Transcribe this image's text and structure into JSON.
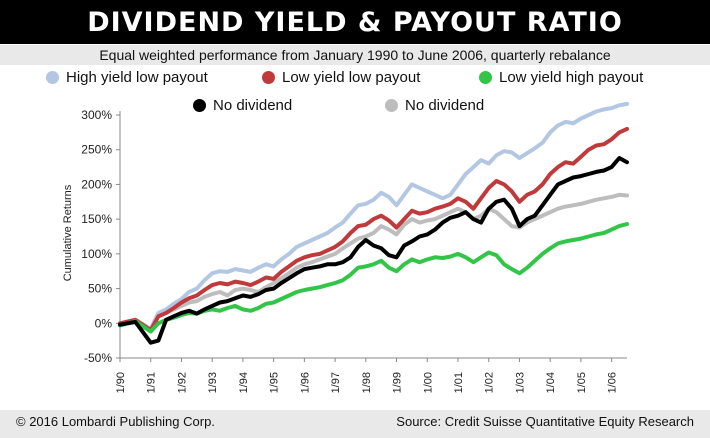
{
  "header": {
    "title": "DIVIDEND YIELD & PAYOUT RATIO",
    "subtitle": "Equal weighted performance from January 1990 to June 2006, quarterly rebalance"
  },
  "footer": {
    "copyright": "© 2016 Lombardi Publishing Corp.",
    "source": "Source: Credit Suisse Quantitative Equity Research"
  },
  "chart_data": {
    "type": "line",
    "ylabel": "Cumulative Returns",
    "xlabel": "",
    "ylim": [
      -50,
      300
    ],
    "yticks": [
      -50,
      0,
      50,
      100,
      150,
      200,
      250,
      300
    ],
    "ytick_labels": [
      "-50%",
      "0%",
      "50%",
      "100%",
      "150%",
      "200%",
      "250%",
      "300%"
    ],
    "x_tick_labels": [
      "1/90",
      "1/91",
      "1/92",
      "1/93",
      "1/94",
      "1/95",
      "1/96",
      "1/97",
      "1/98",
      "1/99",
      "1/00",
      "1/01",
      "1/02",
      "1/03",
      "1/04",
      "1/05",
      "1/06"
    ],
    "x_start_year": 1990,
    "x_end_year": 2006.5,
    "grid": false,
    "legend_position": "top",
    "series": [
      {
        "name": "High yield low payout",
        "color": "#b3c7e3",
        "x": [
          1990,
          1990.5,
          1991,
          1991.25,
          1991.5,
          1991.75,
          1992,
          1992.25,
          1992.5,
          1992.75,
          1993,
          1993.25,
          1993.5,
          1993.75,
          1994,
          1994.25,
          1994.5,
          1994.75,
          1995,
          1995.25,
          1995.5,
          1995.75,
          1996,
          1996.25,
          1996.5,
          1996.75,
          1997,
          1997.25,
          1997.5,
          1997.75,
          1998,
          1998.25,
          1998.5,
          1998.75,
          1999,
          1999.25,
          1999.5,
          1999.75,
          2000,
          2000.25,
          2000.5,
          2000.75,
          2001,
          2001.25,
          2001.5,
          2001.75,
          2002,
          2002.25,
          2002.5,
          2002.75,
          2003,
          2003.25,
          2003.5,
          2003.75,
          2004,
          2004.25,
          2004.5,
          2004.75,
          2005,
          2005.25,
          2005.5,
          2005.75,
          2006,
          2006.25,
          2006.5
        ],
        "y": [
          -3,
          5,
          -8,
          15,
          20,
          28,
          35,
          45,
          50,
          62,
          72,
          75,
          74,
          78,
          76,
          74,
          80,
          85,
          82,
          92,
          100,
          110,
          115,
          120,
          125,
          130,
          138,
          145,
          158,
          170,
          172,
          178,
          188,
          182,
          170,
          185,
          200,
          195,
          190,
          185,
          180,
          185,
          200,
          215,
          225,
          235,
          230,
          242,
          248,
          246,
          238,
          245,
          252,
          260,
          275,
          285,
          290,
          288,
          295,
          300,
          305,
          308,
          310,
          314,
          316
        ]
      },
      {
        "name": "Low yield low payout",
        "color": "#c0393b",
        "x": [
          1990,
          1990.5,
          1991,
          1991.25,
          1991.5,
          1991.75,
          1992,
          1992.25,
          1992.5,
          1992.75,
          1993,
          1993.25,
          1993.5,
          1993.75,
          1994,
          1994.25,
          1994.5,
          1994.75,
          1995,
          1995.25,
          1995.5,
          1995.75,
          1996,
          1996.25,
          1996.5,
          1996.75,
          1997,
          1997.25,
          1997.5,
          1997.75,
          1998,
          1998.25,
          1998.5,
          1998.75,
          1999,
          1999.25,
          1999.5,
          1999.75,
          2000,
          2000.25,
          2000.5,
          2000.75,
          2001,
          2001.25,
          2001.5,
          2001.75,
          2002,
          2002.25,
          2002.5,
          2002.75,
          2003,
          2003.25,
          2003.5,
          2003.75,
          2004,
          2004.25,
          2004.5,
          2004.75,
          2005,
          2005.25,
          2005.5,
          2005.75,
          2006,
          2006.25,
          2006.5
        ],
        "y": [
          0,
          5,
          -10,
          10,
          15,
          22,
          30,
          36,
          40,
          48,
          55,
          58,
          56,
          60,
          58,
          55,
          60,
          66,
          64,
          74,
          82,
          90,
          95,
          98,
          100,
          105,
          110,
          118,
          130,
          140,
          142,
          150,
          155,
          148,
          138,
          150,
          162,
          158,
          160,
          165,
          168,
          172,
          180,
          175,
          165,
          180,
          195,
          205,
          200,
          190,
          175,
          185,
          190,
          200,
          215,
          225,
          232,
          230,
          240,
          250,
          256,
          258,
          265,
          275,
          280
        ]
      },
      {
        "name": "Low yield high payout",
        "color": "#33c548",
        "x": [
          1990,
          1990.5,
          1991,
          1991.25,
          1991.5,
          1991.75,
          1992,
          1992.25,
          1992.5,
          1992.75,
          1993,
          1993.25,
          1993.5,
          1993.75,
          1994,
          1994.25,
          1994.5,
          1994.75,
          1995,
          1995.25,
          1995.5,
          1995.75,
          1996,
          1996.25,
          1996.5,
          1996.75,
          1997,
          1997.25,
          1997.5,
          1997.75,
          1998,
          1998.25,
          1998.5,
          1998.75,
          1999,
          1999.25,
          1999.5,
          1999.75,
          2000,
          2000.25,
          2000.5,
          2000.75,
          2001,
          2001.25,
          2001.5,
          2001.75,
          2002,
          2002.25,
          2002.5,
          2002.75,
          2003,
          2003.25,
          2003.5,
          2003.75,
          2004,
          2004.25,
          2004.5,
          2004.75,
          2005,
          2005.25,
          2005.5,
          2005.75,
          2006,
          2006.25,
          2006.5
        ],
        "y": [
          -3,
          3,
          -12,
          0,
          5,
          8,
          12,
          15,
          14,
          18,
          20,
          18,
          22,
          25,
          20,
          18,
          22,
          28,
          30,
          35,
          40,
          45,
          48,
          50,
          52,
          55,
          58,
          62,
          70,
          80,
          82,
          85,
          90,
          80,
          75,
          85,
          92,
          88,
          92,
          95,
          94,
          96,
          100,
          95,
          88,
          95,
          102,
          98,
          85,
          78,
          72,
          80,
          90,
          100,
          108,
          115,
          118,
          120,
          122,
          125,
          128,
          130,
          135,
          140,
          143
        ]
      },
      {
        "name": "No dividend",
        "color": "#000000",
        "x": [
          1990,
          1990.5,
          1991,
          1991.25,
          1991.5,
          1991.75,
          1992,
          1992.25,
          1992.5,
          1992.75,
          1993,
          1993.25,
          1993.5,
          1993.75,
          1994,
          1994.25,
          1994.5,
          1994.75,
          1995,
          1995.25,
          1995.5,
          1995.75,
          1996,
          1996.25,
          1996.5,
          1996.75,
          1997,
          1997.25,
          1997.5,
          1997.75,
          1998,
          1998.25,
          1998.5,
          1998.75,
          1999,
          1999.25,
          1999.5,
          1999.75,
          2000,
          2000.25,
          2000.5,
          2000.75,
          2001,
          2001.25,
          2001.5,
          2001.75,
          2002,
          2002.25,
          2002.5,
          2002.75,
          2003,
          2003.25,
          2003.5,
          2003.75,
          2004,
          2004.25,
          2004.5,
          2004.75,
          2005,
          2005.25,
          2005.5,
          2005.75,
          2006,
          2006.25,
          2006.5
        ],
        "y": [
          -2,
          2,
          -28,
          -25,
          5,
          10,
          15,
          18,
          14,
          20,
          25,
          30,
          32,
          36,
          40,
          38,
          42,
          48,
          50,
          58,
          65,
          72,
          78,
          80,
          82,
          85,
          85,
          88,
          95,
          110,
          120,
          112,
          108,
          98,
          95,
          112,
          118,
          125,
          128,
          135,
          145,
          152,
          155,
          160,
          150,
          145,
          165,
          175,
          178,
          165,
          140,
          150,
          155,
          170,
          185,
          200,
          205,
          210,
          212,
          215,
          218,
          220,
          225,
          238,
          232
        ]
      },
      {
        "name": "No dividend",
        "color": "#bdbdbd",
        "x": [
          1990,
          1990.5,
          1991,
          1991.25,
          1991.5,
          1991.75,
          1992,
          1992.25,
          1992.5,
          1992.75,
          1993,
          1993.25,
          1993.5,
          1993.75,
          1994,
          1994.25,
          1994.5,
          1994.75,
          1995,
          1995.25,
          1995.5,
          1995.75,
          1996,
          1996.25,
          1996.5,
          1996.75,
          1997,
          1997.25,
          1997.5,
          1997.75,
          1998,
          1998.25,
          1998.5,
          1998.75,
          1999,
          1999.25,
          1999.5,
          1999.75,
          2000,
          2000.25,
          2000.5,
          2000.75,
          2001,
          2001.25,
          2001.5,
          2001.75,
          2002,
          2002.25,
          2002.5,
          2002.75,
          2003,
          2003.25,
          2003.5,
          2003.75,
          2004,
          2004.25,
          2004.5,
          2004.75,
          2005,
          2005.25,
          2005.5,
          2005.75,
          2006,
          2006.25,
          2006.5
        ],
        "y": [
          -3,
          4,
          -10,
          10,
          15,
          20,
          25,
          30,
          32,
          38,
          42,
          45,
          40,
          48,
          50,
          48,
          45,
          52,
          58,
          65,
          72,
          80,
          85,
          88,
          92,
          96,
          100,
          108,
          115,
          122,
          125,
          130,
          140,
          135,
          128,
          142,
          150,
          145,
          148,
          150,
          155,
          160,
          165,
          160,
          150,
          155,
          165,
          160,
          150,
          140,
          138,
          145,
          150,
          155,
          160,
          165,
          168,
          170,
          172,
          175,
          178,
          180,
          182,
          185,
          184
        ]
      }
    ]
  }
}
